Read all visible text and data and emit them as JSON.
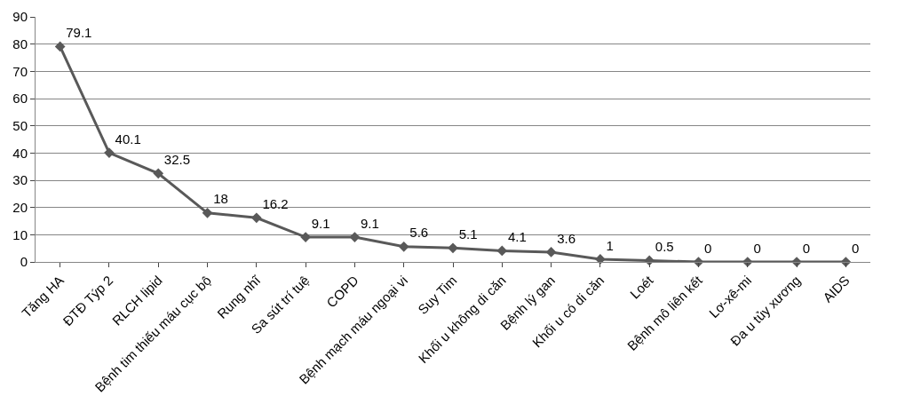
{
  "chart_data": {
    "type": "line",
    "categories": [
      "Tăng HA",
      "ĐTĐ Týp 2",
      "RLCH lipid",
      "Bệnh tim thiếu máu cục bộ",
      "Rung nhĩ",
      "Sa sút trí tuệ",
      "COPD",
      "Bệnh mạch máu ngoại vi",
      "Suy Tim",
      "Khối u không di căn",
      "Bệnh lý gan",
      "Khối u có di căn",
      "Loét",
      "Bệnh mô liên kết",
      "Lơ-xê-mi",
      "Đa u tủy xương",
      "AIDS"
    ],
    "series": [
      {
        "color": "#595959",
        "values": [
          79.1,
          40.1,
          32.5,
          18,
          16.2,
          9.1,
          9.1,
          5.6,
          5.1,
          4.1,
          3.6,
          1,
          0.5,
          0,
          0,
          0,
          0
        ]
      }
    ],
    "ylim": [
      0,
      90
    ],
    "yticks": [
      0,
      10,
      20,
      30,
      40,
      50,
      60,
      70,
      80,
      90
    ],
    "grid": "y",
    "marker": "diamond",
    "line_style": "solid",
    "data_labels": true
  }
}
